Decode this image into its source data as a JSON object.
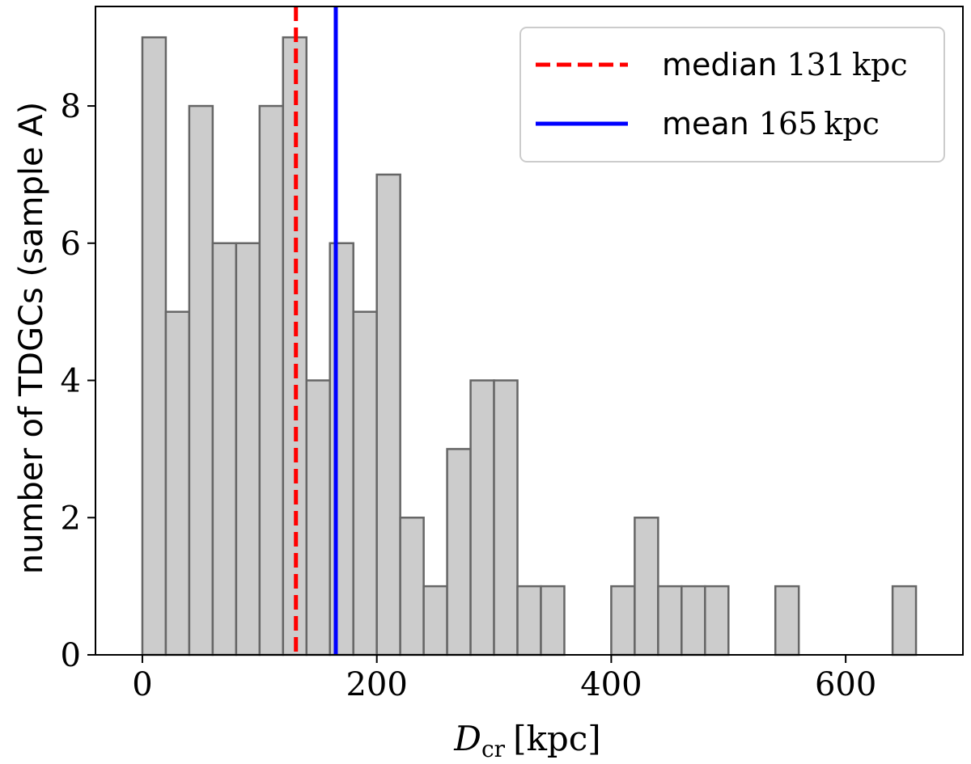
{
  "chart_data": {
    "type": "bar",
    "subtype": "histogram",
    "bin_width": 20,
    "bin_start": 0,
    "counts": [
      9,
      5,
      8,
      6,
      6,
      8,
      9,
      4,
      6,
      5,
      7,
      2,
      1,
      3,
      4,
      4,
      1,
      1,
      0,
      0,
      1,
      2,
      1,
      1,
      1,
      0,
      0,
      1,
      0,
      0,
      0,
      0,
      1
    ],
    "xlim": [
      -40,
      700
    ],
    "ylim": [
      0,
      9.45
    ],
    "xticks": [
      0,
      200,
      400,
      600
    ],
    "xtick_labels": [
      "0",
      "200",
      "400",
      "600"
    ],
    "yticks": [
      0,
      2,
      4,
      6,
      8
    ],
    "ytick_labels": [
      "0",
      "2",
      "4",
      "6",
      "8"
    ],
    "xlabel_main": "D",
    "xlabel_sub": "cr",
    "xlabel_unit": "[kpc]",
    "ylabel": "number of TDGCs (sample A)",
    "bar_fill": "#cccccc",
    "bar_edge": "#666666",
    "reference_lines": [
      {
        "name": "median",
        "value": 131,
        "unit": "kpc",
        "color": "#ff0000",
        "style": "dashed"
      },
      {
        "name": "mean",
        "value": 165,
        "unit": "kpc",
        "color": "#0000ff",
        "style": "solid"
      }
    ],
    "legend": {
      "location": "top-right",
      "entries": [
        {
          "label": "median",
          "value_text": "131",
          "unit_text": "kpc",
          "color": "#ff0000",
          "style": "dashed"
        },
        {
          "label": "mean",
          "value_text": "165",
          "unit_text": "kpc",
          "color": "#0000ff",
          "style": "solid"
        }
      ]
    }
  }
}
